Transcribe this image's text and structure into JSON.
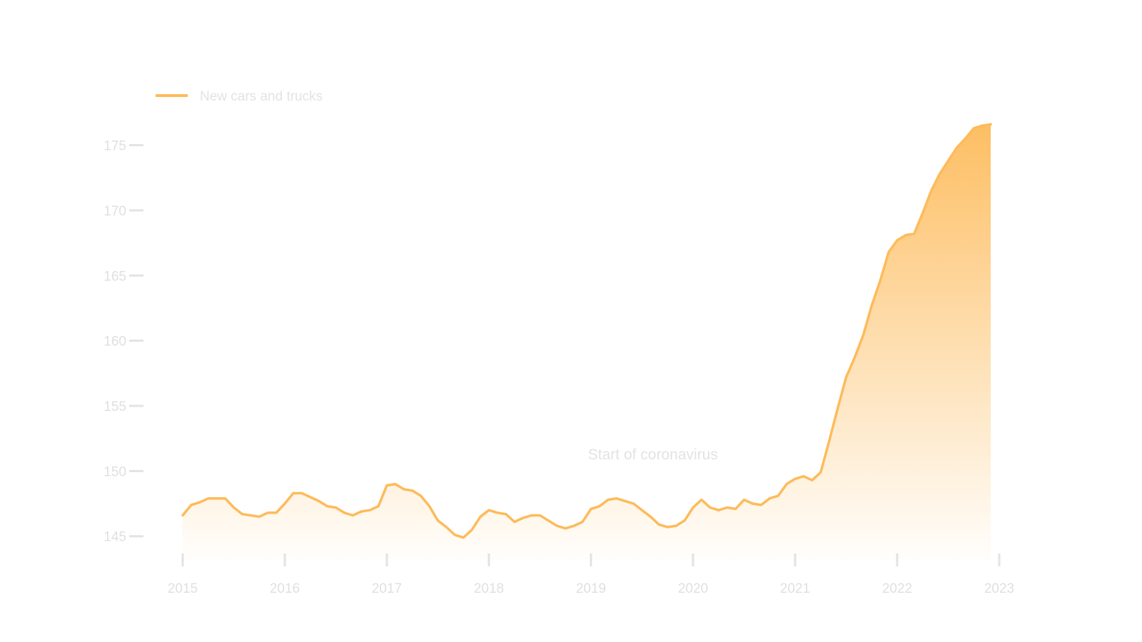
{
  "chart_data": {
    "type": "area",
    "title": "",
    "xlabel": "",
    "ylabel": "",
    "x_ticks": [
      "2015",
      "2016",
      "2017",
      "2018",
      "2019",
      "2020",
      "2021",
      "2022",
      "2023"
    ],
    "y_ticks": [
      "145",
      "150",
      "155",
      "160",
      "165",
      "170",
      "175"
    ],
    "xlim": [
      "2015-01",
      "2023-01"
    ],
    "ylim": [
      144,
      177
    ],
    "grid": false,
    "legend": "top-left",
    "annotation": {
      "text": "Start of coronavirus",
      "x": "2020-03"
    },
    "series": [
      {
        "name": "New cars and trucks",
        "color": "#fdbb5b",
        "x": [
          "2015-01",
          "2015-02",
          "2015-03",
          "2015-04",
          "2015-05",
          "2015-06",
          "2015-07",
          "2015-08",
          "2015-09",
          "2015-10",
          "2015-11",
          "2015-12",
          "2016-01",
          "2016-02",
          "2016-03",
          "2016-04",
          "2016-05",
          "2016-06",
          "2016-07",
          "2016-08",
          "2016-09",
          "2016-10",
          "2016-11",
          "2016-12",
          "2017-01",
          "2017-02",
          "2017-03",
          "2017-04",
          "2017-05",
          "2017-06",
          "2017-07",
          "2017-08",
          "2017-09",
          "2017-10",
          "2017-11",
          "2017-12",
          "2018-01",
          "2018-02",
          "2018-03",
          "2018-04",
          "2018-05",
          "2018-06",
          "2018-07",
          "2018-08",
          "2018-09",
          "2018-10",
          "2018-11",
          "2018-12",
          "2019-01",
          "2019-02",
          "2019-03",
          "2019-04",
          "2019-05",
          "2019-06",
          "2019-07",
          "2019-08",
          "2019-09",
          "2019-10",
          "2019-11",
          "2019-12",
          "2020-01",
          "2020-02",
          "2020-03",
          "2020-04",
          "2020-05",
          "2020-06",
          "2020-07",
          "2020-08",
          "2020-09",
          "2020-10",
          "2020-11",
          "2020-12",
          "2021-01",
          "2021-02",
          "2021-03",
          "2021-04",
          "2021-05",
          "2021-06",
          "2021-07",
          "2021-08",
          "2021-09",
          "2021-10",
          "2021-11",
          "2021-12",
          "2022-01",
          "2022-02",
          "2022-03",
          "2022-04",
          "2022-05",
          "2022-06",
          "2022-07",
          "2022-08",
          "2022-09",
          "2022-10",
          "2022-11",
          "2022-12"
        ],
        "values": [
          146.6,
          147.4,
          147.6,
          147.9,
          147.9,
          147.9,
          147.2,
          146.7,
          146.6,
          146.5,
          146.8,
          146.8,
          147.5,
          148.3,
          148.3,
          148.0,
          147.7,
          147.3,
          147.2,
          146.8,
          146.6,
          146.9,
          147.0,
          147.3,
          148.9,
          149.0,
          148.6,
          148.5,
          148.1,
          147.3,
          146.2,
          145.7,
          145.1,
          144.9,
          145.5,
          146.5,
          147.0,
          146.8,
          146.7,
          146.1,
          146.4,
          146.6,
          146.6,
          146.2,
          145.8,
          145.6,
          145.8,
          146.1,
          147.1,
          147.3,
          147.8,
          147.9,
          147.7,
          147.5,
          147.0,
          146.5,
          145.9,
          145.7,
          145.8,
          146.2,
          147.2,
          147.8,
          147.2,
          147.0,
          147.2,
          147.1,
          147.8,
          147.5,
          147.4,
          147.9,
          148.1,
          149.0,
          149.4,
          149.6,
          149.3,
          149.9,
          152.3,
          154.8,
          157.2,
          158.7,
          160.4,
          162.7,
          164.6,
          166.8,
          167.7,
          168.1,
          168.2,
          169.8,
          171.5,
          172.8,
          173.8,
          174.8,
          175.5,
          176.3,
          176.5,
          176.6
        ]
      }
    ]
  }
}
